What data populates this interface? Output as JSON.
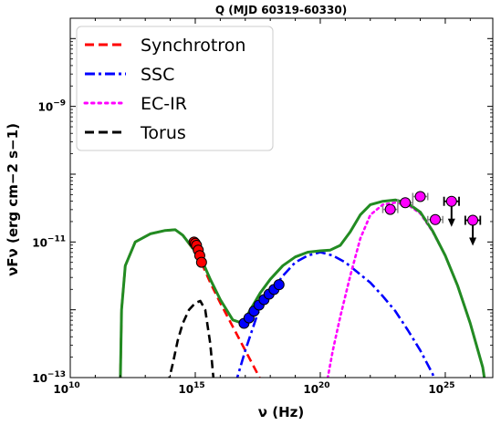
{
  "chart_data": {
    "type": "line",
    "title": "Q (MJD 60319-60330)",
    "xlabel": "ν (Hz)",
    "ylabel": "νFν (erg cm−2 s−1)",
    "xscale": "log",
    "yscale": "log",
    "xlim_log10": [
      10,
      26.9
    ],
    "ylim_log10": [
      -13,
      -7.7
    ],
    "x_ticks": [
      {
        "log10": 10,
        "label": "10",
        "exp": "10"
      },
      {
        "log10": 15,
        "label": "10",
        "exp": "15"
      },
      {
        "log10": 20,
        "label": "10",
        "exp": "20"
      },
      {
        "log10": 25,
        "label": "10",
        "exp": "25"
      }
    ],
    "y_ticks": [
      {
        "log10": -13,
        "label": "10",
        "exp": "−13"
      },
      {
        "log10": -11,
        "label": "10",
        "exp": "−11"
      },
      {
        "log10": -9,
        "label": "10",
        "exp": "−9"
      }
    ],
    "legend": {
      "position": "top-left",
      "entries": [
        {
          "name": "Synchrotron",
          "color": "#ff0000",
          "dash": "dashed"
        },
        {
          "name": "SSC",
          "color": "#0000ff",
          "dash": "dashdot"
        },
        {
          "name": "EC-IR",
          "color": "#ff00ff",
          "dash": "dotted"
        },
        {
          "name": "Torus",
          "color": "#000000",
          "dash": "dashed"
        }
      ]
    },
    "series": [
      {
        "name": "Synchrotron",
        "color": "#ff0000",
        "dash": "dashed",
        "points": [
          [
            12.0,
            -13.1
          ],
          [
            12.05,
            -12.0
          ],
          [
            12.2,
            -11.35
          ],
          [
            12.6,
            -11.0
          ],
          [
            13.2,
            -10.88
          ],
          [
            13.8,
            -10.83
          ],
          [
            14.2,
            -10.82
          ],
          [
            14.5,
            -10.9
          ],
          [
            15.0,
            -11.15
          ],
          [
            15.3,
            -11.35
          ],
          [
            15.6,
            -11.6
          ],
          [
            16.0,
            -11.9
          ],
          [
            16.5,
            -12.25
          ],
          [
            17.0,
            -12.6
          ],
          [
            17.5,
            -12.95
          ],
          [
            17.7,
            -13.1
          ]
        ]
      },
      {
        "name": "SSC",
        "color": "#0000ff",
        "dash": "dashdot",
        "points": [
          [
            16.6,
            -13.1
          ],
          [
            17.0,
            -12.6
          ],
          [
            17.5,
            -12.05
          ],
          [
            18.0,
            -11.75
          ],
          [
            18.5,
            -11.5
          ],
          [
            19.0,
            -11.3
          ],
          [
            19.5,
            -11.2
          ],
          [
            20.0,
            -11.15
          ],
          [
            20.5,
            -11.2
          ],
          [
            21.0,
            -11.3
          ],
          [
            21.5,
            -11.45
          ],
          [
            22.0,
            -11.6
          ],
          [
            22.5,
            -11.8
          ],
          [
            23.0,
            -12.02
          ],
          [
            23.5,
            -12.3
          ],
          [
            24.0,
            -12.6
          ],
          [
            24.5,
            -12.95
          ],
          [
            24.6,
            -13.1
          ]
        ]
      },
      {
        "name": "EC-IR",
        "color": "#ff00ff",
        "dash": "dotted",
        "points": [
          [
            20.25,
            -13.1
          ],
          [
            20.5,
            -12.6
          ],
          [
            20.8,
            -12.1
          ],
          [
            21.2,
            -11.5
          ],
          [
            21.6,
            -10.95
          ],
          [
            22.0,
            -10.6
          ],
          [
            22.5,
            -10.45
          ],
          [
            23.0,
            -10.42
          ],
          [
            23.5,
            -10.45
          ],
          [
            24.0,
            -10.58
          ],
          [
            24.5,
            -10.85
          ],
          [
            25.0,
            -11.2
          ],
          [
            25.5,
            -11.65
          ],
          [
            26.0,
            -12.2
          ],
          [
            26.5,
            -12.85
          ],
          [
            26.6,
            -13.1
          ]
        ]
      },
      {
        "name": "Torus",
        "color": "#000000",
        "dash": "dashed",
        "points": [
          [
            13.9,
            -13.1
          ],
          [
            14.1,
            -12.8
          ],
          [
            14.3,
            -12.45
          ],
          [
            14.5,
            -12.2
          ],
          [
            14.75,
            -12.0
          ],
          [
            15.0,
            -11.9
          ],
          [
            15.2,
            -11.87
          ],
          [
            15.4,
            -12.0
          ],
          [
            15.6,
            -12.5
          ],
          [
            15.75,
            -13.1
          ]
        ]
      },
      {
        "name": "total",
        "color": "#228b22",
        "dash": "solid",
        "points": [
          [
            12.0,
            -13.1
          ],
          [
            12.05,
            -12.0
          ],
          [
            12.2,
            -11.35
          ],
          [
            12.6,
            -11.0
          ],
          [
            13.2,
            -10.88
          ],
          [
            13.8,
            -10.83
          ],
          [
            14.2,
            -10.82
          ],
          [
            14.5,
            -10.9
          ],
          [
            15.0,
            -11.14
          ],
          [
            15.3,
            -11.3
          ],
          [
            15.6,
            -11.55
          ],
          [
            16.0,
            -11.85
          ],
          [
            16.5,
            -12.15
          ],
          [
            16.9,
            -12.2
          ],
          [
            17.2,
            -12.0
          ],
          [
            17.6,
            -11.75
          ],
          [
            18.0,
            -11.55
          ],
          [
            18.5,
            -11.35
          ],
          [
            19.0,
            -11.22
          ],
          [
            19.5,
            -11.15
          ],
          [
            20.0,
            -11.13
          ],
          [
            20.4,
            -11.12
          ],
          [
            20.8,
            -11.05
          ],
          [
            21.2,
            -10.85
          ],
          [
            21.6,
            -10.6
          ],
          [
            22.0,
            -10.45
          ],
          [
            22.5,
            -10.4
          ],
          [
            23.0,
            -10.38
          ],
          [
            23.5,
            -10.43
          ],
          [
            24.0,
            -10.56
          ],
          [
            24.5,
            -10.84
          ],
          [
            25.0,
            -11.2
          ],
          [
            25.5,
            -11.65
          ],
          [
            26.0,
            -12.2
          ],
          [
            26.5,
            -12.85
          ],
          [
            26.6,
            -13.1
          ]
        ]
      }
    ],
    "data_points": {
      "optical": {
        "color": "#ff0000",
        "points": [
          [
            14.95,
            -11.0
          ],
          [
            15.0,
            -11.02
          ],
          [
            15.05,
            -11.05
          ],
          [
            15.12,
            -11.12
          ],
          [
            15.18,
            -11.2
          ],
          [
            15.25,
            -11.3
          ]
        ]
      },
      "xray": {
        "color": "#0000ff",
        "points": [
          [
            16.95,
            -12.2
          ],
          [
            17.15,
            -12.12
          ],
          [
            17.35,
            -12.02
          ],
          [
            17.55,
            -11.93
          ],
          [
            17.75,
            -11.85
          ],
          [
            17.95,
            -11.77
          ],
          [
            18.15,
            -11.7
          ],
          [
            18.35,
            -11.63
          ]
        ]
      },
      "gamma": {
        "color": "#ff00ff",
        "points": [
          [
            22.8,
            -10.52
          ],
          [
            23.4,
            -10.42
          ],
          [
            24.0,
            -10.33
          ],
          [
            24.6,
            -10.67
          ]
        ],
        "xerr": [
          0.3,
          0.3,
          0.3,
          0.3
        ]
      },
      "upper_limits": {
        "color": "#ff00ff",
        "points": [
          [
            25.25,
            -10.4
          ],
          [
            26.1,
            -10.68
          ]
        ],
        "xerr": [
          0.3,
          0.3
        ]
      }
    }
  }
}
